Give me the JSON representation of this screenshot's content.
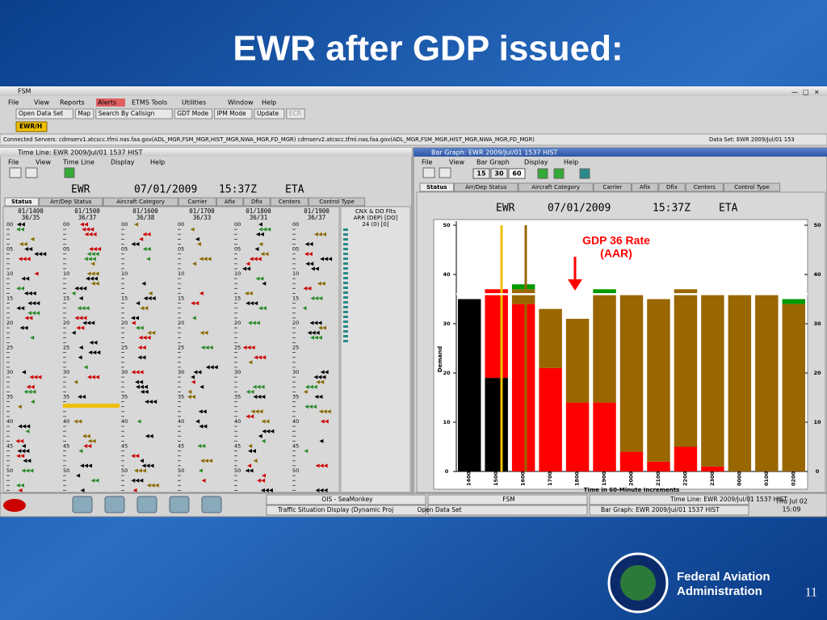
{
  "slide": {
    "title": "EWR after GDP issued:",
    "agency": [
      "Federal Aviation",
      "Administration"
    ],
    "page": "11"
  },
  "fsm": {
    "window_title": "FSM",
    "menu": [
      "File",
      "View",
      "Reports",
      "Alerts",
      "ETMS Tools",
      "Utilities",
      "Window",
      "Help"
    ],
    "toolbar": [
      "Open Data Set",
      "Map",
      "Search By Callsign",
      "GDT Mode",
      "IPM Mode",
      "Update",
      "ECR"
    ],
    "tab": "EWR/H",
    "servers": "Connected Servers: cdmserv1.atcscc.tfmi.nas.faa.gov(ADL_MGR,FSM_MGR,HIST_MGR,NWA_MGR,FD_MGR) cdmserv2.atcscc.tfmi.nas.faa.gov(ADL_MGR,FSM_MGR,HIST_MGR,NWA_MGR,FD_MGR)",
    "dataset": "Data Set: EWR 2009/Jul/01 153"
  },
  "timeline": {
    "window_title": "Time Line: EWR 2009/Jul/01 1537 HIST",
    "menu": [
      "File",
      "View",
      "Time Line",
      "Display",
      "Help"
    ],
    "header": [
      "EWR",
      "07/01/2009",
      "15:37Z",
      "ETA"
    ],
    "tabs": [
      "Status",
      "Arr/Dep Status",
      "Aircraft Category",
      "Carrier",
      "Afix",
      "Dfix",
      "Centers",
      "Control Type"
    ],
    "columns": [
      {
        "hour": "01/1400",
        "count": "36/35"
      },
      {
        "hour": "01/1500",
        "count": "36/37"
      },
      {
        "hour": "01/1600",
        "count": "36/38"
      },
      {
        "hour": "01/1700",
        "count": "36/33"
      },
      {
        "hour": "01/1800",
        "count": "36/31"
      },
      {
        "hour": "01/1900",
        "count": "36/37"
      }
    ],
    "minutes": [
      "00",
      "05",
      "10",
      "15",
      "20",
      "25",
      "30",
      "35",
      "40",
      "45",
      "50"
    ],
    "side": [
      "CNX & DO Flts",
      "ARR (DEP) [DO]",
      "24 (0) [0]"
    ]
  },
  "bar_graph": {
    "window_title": "Bar Graph: EWR 2009/Jul/01 1537 HIST",
    "menu": [
      "File",
      "View",
      "Bar Graph",
      "Display",
      "Help"
    ],
    "buttons": [
      "15",
      "30",
      "60"
    ],
    "tabs": [
      "Status",
      "Arr/Dep Status",
      "Aircraft Category",
      "Carrier",
      "Afix",
      "Dfix",
      "Centers",
      "Control Type"
    ],
    "header": [
      "EWR",
      "07/01/2009",
      "15:37Z",
      "ETA"
    ],
    "chart_data": {
      "type": "bar",
      "ylabel": "Demand",
      "xlabel": "Time in 60-Minute Increments",
      "categories": [
        "1400",
        "1500",
        "1600",
        "1700",
        "1800",
        "1900",
        "2000",
        "2100",
        "2200",
        "2300",
        "0000",
        "0100",
        "0200"
      ],
      "series": [
        {
          "color": "#000000",
          "values": [
            35,
            19,
            0,
            0,
            0,
            0,
            0,
            0,
            0,
            0,
            0,
            0,
            0
          ]
        },
        {
          "color": "#ff0000",
          "values": [
            0,
            18,
            34,
            21,
            14,
            14,
            4,
            2,
            5,
            1,
            0,
            0,
            0
          ]
        },
        {
          "color": "#996600",
          "values": [
            0,
            0,
            3,
            12,
            17,
            22,
            32,
            33,
            32,
            35,
            36,
            36,
            34
          ]
        },
        {
          "color": "#009900",
          "values": [
            0,
            0,
            1,
            0,
            0,
            1,
            0,
            0,
            0,
            0,
            0,
            0,
            1
          ]
        }
      ],
      "ylim": [
        0,
        50
      ],
      "yticks": [
        0,
        10,
        20,
        30,
        40,
        50
      ],
      "stacked": true,
      "reference_line": {
        "value": 36,
        "label": [
          "GDP 36 Rate",
          "(AAR)"
        ],
        "color": "#ff0000"
      }
    }
  },
  "taskbar": {
    "tasks": [
      "OIS - SeaMonkey",
      "Traffic Situation Display (Dynamic Proj",
      "FSM",
      "Open Data Set",
      "Time Line: EWR 2009/Jul/01 1537 HIST",
      "Bar Graph: EWR 2009/Jul/01 1537 HIST"
    ],
    "clock": [
      "Thu Jul 02",
      "15:09"
    ]
  }
}
